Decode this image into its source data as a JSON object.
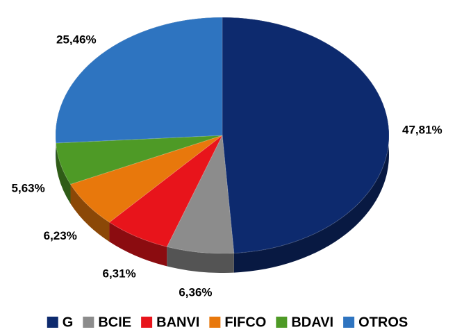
{
  "chart_data": {
    "type": "pie",
    "categories": [
      "G",
      "BCIE",
      "BANVI",
      "FIFCO",
      "BDAVI",
      "OTROS"
    ],
    "values": [
      47.81,
      6.36,
      6.31,
      6.23,
      5.63,
      25.46
    ],
    "value_labels": [
      "47,81%",
      "6,36%",
      "6,31%",
      "6,23%",
      "5,63%",
      "25,46%"
    ],
    "colors": [
      "#0d2a6e",
      "#8c8c8c",
      "#e8141b",
      "#e8780c",
      "#4e9a26",
      "#2e74c0"
    ],
    "legend": "bottom"
  }
}
